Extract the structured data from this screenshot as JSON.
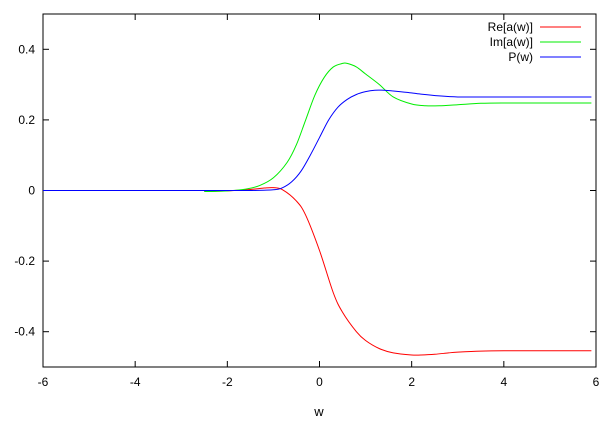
{
  "chart_data": {
    "type": "line",
    "title": "",
    "xlabel": "w",
    "ylabel": "",
    "xlim": [
      -6,
      6
    ],
    "ylim": [
      -0.5,
      0.5
    ],
    "xticks": [
      -6,
      -4,
      -2,
      0,
      2,
      4,
      6
    ],
    "xtick_labels": [
      "-6",
      "-4",
      "-2",
      "0",
      "2",
      "4",
      "6"
    ],
    "yticks": [
      -0.4,
      -0.2,
      0,
      0.2,
      0.4
    ],
    "ytick_labels": [
      "-0.4",
      "-0.2",
      "0",
      "0.2",
      "0.4"
    ],
    "grid": false,
    "legend_position": "top-right",
    "series": [
      {
        "name": "Re[a(w)]",
        "color": "#ff0000",
        "x": [
          -2.5,
          -2.0,
          -1.5,
          -1.2,
          -1.0,
          -0.8,
          -0.5,
          -0.3,
          0.0,
          0.3,
          0.5,
          0.8,
          1.0,
          1.3,
          1.6,
          2.0,
          2.2,
          2.5,
          2.8,
          3.0,
          3.5,
          4.0,
          5.0,
          5.9
        ],
        "y": [
          -0.003,
          -0.001,
          0.003,
          0.007,
          0.008,
          0.002,
          -0.03,
          -0.07,
          -0.17,
          -0.29,
          -0.345,
          -0.4,
          -0.425,
          -0.448,
          -0.46,
          -0.466,
          -0.466,
          -0.464,
          -0.46,
          -0.458,
          -0.455,
          -0.454,
          -0.454,
          -0.454
        ]
      },
      {
        "name": "Im[a(w)]",
        "color": "#00ee00",
        "x": [
          -2.5,
          -2.0,
          -1.6,
          -1.3,
          -1.0,
          -0.7,
          -0.5,
          -0.3,
          -0.1,
          0.1,
          0.3,
          0.5,
          0.6,
          0.8,
          1.0,
          1.3,
          1.6,
          2.0,
          2.3,
          2.6,
          3.0,
          3.5,
          4.0,
          5.0,
          5.9
        ],
        "y": [
          -0.003,
          -0.001,
          0.004,
          0.014,
          0.036,
          0.08,
          0.13,
          0.2,
          0.27,
          0.32,
          0.35,
          0.36,
          0.36,
          0.35,
          0.33,
          0.3,
          0.265,
          0.245,
          0.24,
          0.24,
          0.243,
          0.247,
          0.248,
          0.248,
          0.248
        ]
      },
      {
        "name": "P(w)",
        "color": "#0000ff",
        "x": [
          -6.0,
          -3.0,
          -2.0,
          -1.5,
          -1.0,
          -0.8,
          -0.6,
          -0.4,
          -0.2,
          0.0,
          0.2,
          0.4,
          0.6,
          0.8,
          1.0,
          1.2,
          1.4,
          1.6,
          1.9,
          2.2,
          2.6,
          3.0,
          3.5,
          4.0,
          5.0,
          5.9
        ],
        "y": [
          0.0,
          0.0,
          0.0,
          0.0,
          0.002,
          0.008,
          0.025,
          0.055,
          0.1,
          0.15,
          0.2,
          0.236,
          0.258,
          0.272,
          0.28,
          0.284,
          0.284,
          0.282,
          0.278,
          0.273,
          0.268,
          0.265,
          0.265,
          0.265,
          0.265,
          0.265
        ]
      }
    ]
  }
}
